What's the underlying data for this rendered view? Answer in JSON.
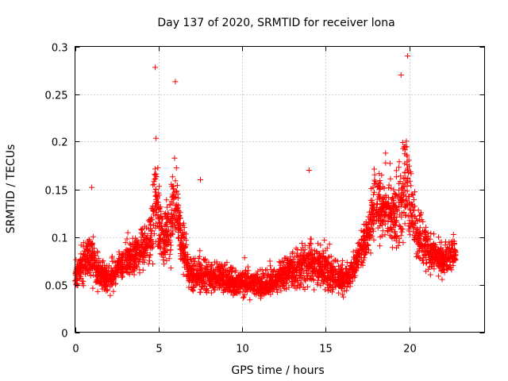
{
  "chart_data": {
    "type": "scatter",
    "title": "Day 137 of 2020, SRMTID for receiver lona",
    "xlabel": "GPS time / hours",
    "ylabel": "SRMTID / TECUs",
    "xlim": [
      0,
      24.5
    ],
    "ylim": [
      0,
      0.3
    ],
    "xticks": [
      0,
      5,
      10,
      15,
      20
    ],
    "yticks": [
      0,
      0.05,
      0.1,
      0.15,
      0.2,
      0.25,
      0.3
    ],
    "xtick_labels": [
      "0",
      "5",
      "10",
      "15",
      "20"
    ],
    "ytick_labels": [
      "0",
      "0.05",
      "0.1",
      "0.15",
      "0.2",
      "0.25",
      "0.3"
    ],
    "grid": true,
    "marker": "+",
    "color": "#ff0000",
    "series": [
      {
        "name": "SRMTID",
        "note": "dense per-epoch scatter approximated by envelope profile",
        "profile_x": [
          0,
          0.3,
          0.7,
          1.0,
          1.5,
          2.0,
          2.5,
          3.0,
          3.5,
          4.0,
          4.5,
          4.8,
          5.0,
          5.3,
          5.7,
          6.0,
          6.3,
          6.7,
          7.0,
          7.5,
          8.0,
          8.5,
          9.0,
          9.5,
          10.0,
          10.5,
          11.0,
          11.5,
          12.0,
          12.5,
          13.0,
          13.5,
          14.0,
          14.5,
          15.0,
          15.5,
          16.0,
          16.5,
          17.0,
          17.5,
          18.0,
          18.5,
          19.0,
          19.5,
          19.8,
          20.0,
          20.5,
          21.0,
          21.5,
          22.0,
          22.5,
          22.8
        ],
        "profile_median": [
          0.058,
          0.065,
          0.08,
          0.075,
          0.06,
          0.055,
          0.065,
          0.075,
          0.08,
          0.085,
          0.1,
          0.14,
          0.12,
          0.095,
          0.11,
          0.14,
          0.1,
          0.07,
          0.06,
          0.06,
          0.06,
          0.058,
          0.055,
          0.05,
          0.055,
          0.052,
          0.05,
          0.05,
          0.055,
          0.06,
          0.065,
          0.07,
          0.075,
          0.07,
          0.065,
          0.06,
          0.055,
          0.06,
          0.08,
          0.1,
          0.14,
          0.13,
          0.12,
          0.13,
          0.16,
          0.14,
          0.1,
          0.09,
          0.08,
          0.075,
          0.08,
          0.085
        ],
        "profile_spread": [
          0.02,
          0.025,
          0.035,
          0.035,
          0.025,
          0.025,
          0.028,
          0.03,
          0.032,
          0.035,
          0.045,
          0.08,
          0.07,
          0.045,
          0.06,
          0.08,
          0.05,
          0.035,
          0.028,
          0.028,
          0.028,
          0.025,
          0.025,
          0.022,
          0.024,
          0.022,
          0.022,
          0.022,
          0.024,
          0.026,
          0.03,
          0.035,
          0.04,
          0.035,
          0.032,
          0.03,
          0.025,
          0.028,
          0.03,
          0.04,
          0.055,
          0.05,
          0.05,
          0.065,
          0.085,
          0.07,
          0.045,
          0.04,
          0.03,
          0.028,
          0.028,
          0.025
        ],
        "peaks": [
          {
            "x": 4.8,
            "y": 0.278
          },
          {
            "x": 6.0,
            "y": 0.263
          },
          {
            "x": 19.9,
            "y": 0.29
          },
          {
            "x": 19.5,
            "y": 0.27
          },
          {
            "x": 14.0,
            "y": 0.17
          },
          {
            "x": 7.5,
            "y": 0.16
          },
          {
            "x": 1.0,
            "y": 0.152
          }
        ],
        "x_range": [
          0,
          22.8
        ],
        "point_count": 3400
      }
    ]
  }
}
